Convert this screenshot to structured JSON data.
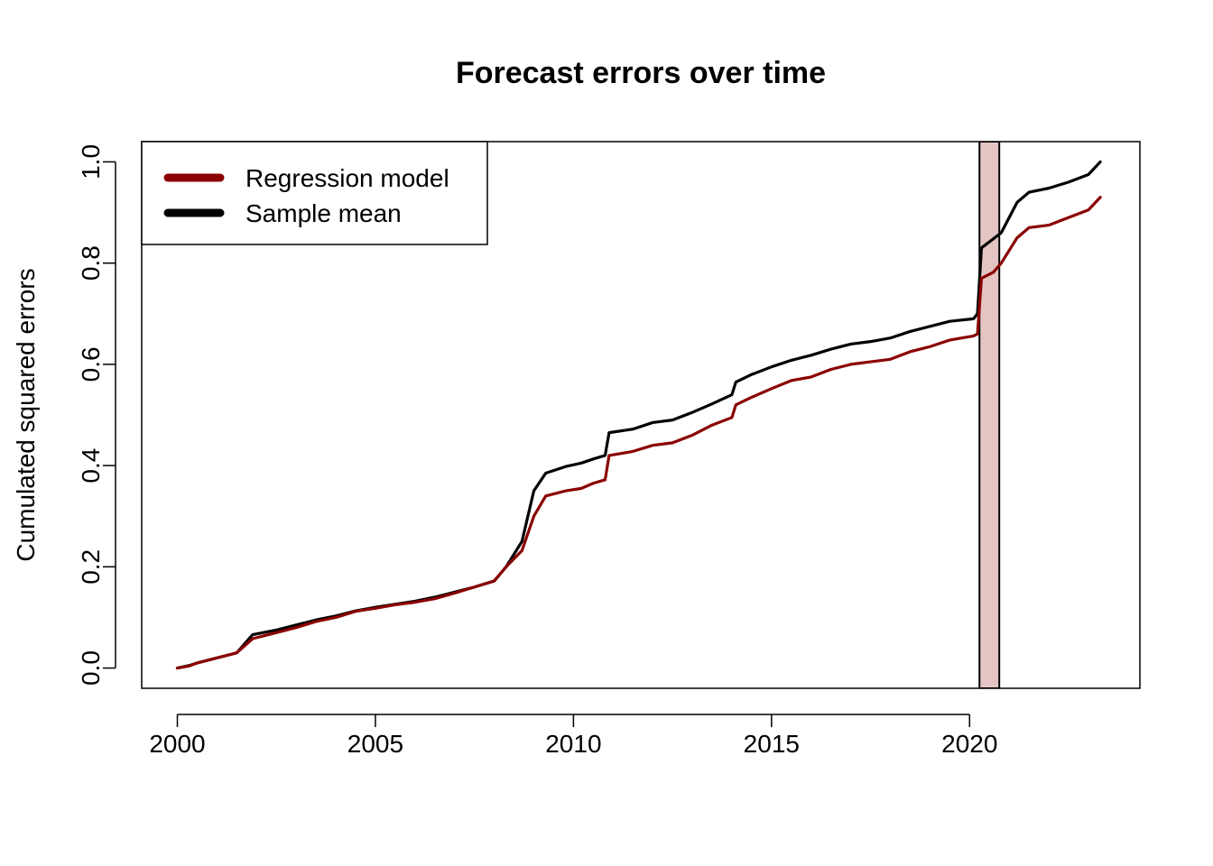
{
  "chart_data": {
    "type": "line",
    "title": "Forecast errors over time",
    "xlabel": "",
    "ylabel": "Cumulated squared errors",
    "xlim": [
      1999.1,
      2024.3
    ],
    "ylim": [
      -0.04,
      1.04
    ],
    "x_ticks": [
      2000,
      2005,
      2010,
      2015,
      2020
    ],
    "x_tick_labels": [
      "2000",
      "2005",
      "2010",
      "2015",
      "2020"
    ],
    "y_ticks": [
      0.0,
      0.2,
      0.4,
      0.6,
      0.8,
      1.0
    ],
    "y_tick_labels": [
      "0.0",
      "0.2",
      "0.4",
      "0.6",
      "0.8",
      "1.0"
    ],
    "shaded_region": {
      "x_start": 2020.25,
      "x_end": 2020.75,
      "color": "#e5c4c4"
    },
    "legend": {
      "placement": "top-left",
      "entries": [
        "Regression model",
        "Sample mean"
      ]
    },
    "series": [
      {
        "name": "Regression model",
        "color": "#8b0000",
        "points": [
          [
            2000.0,
            0.0
          ],
          [
            2000.3,
            0.004
          ],
          [
            2000.5,
            0.01
          ],
          [
            2001.0,
            0.02
          ],
          [
            2001.5,
            0.03
          ],
          [
            2001.9,
            0.058
          ],
          [
            2002.5,
            0.07
          ],
          [
            2003.0,
            0.08
          ],
          [
            2003.5,
            0.092
          ],
          [
            2004.0,
            0.1
          ],
          [
            2004.5,
            0.112
          ],
          [
            2005.0,
            0.118
          ],
          [
            2005.5,
            0.125
          ],
          [
            2006.0,
            0.13
          ],
          [
            2006.5,
            0.137
          ],
          [
            2007.0,
            0.148
          ],
          [
            2007.5,
            0.16
          ],
          [
            2008.0,
            0.172
          ],
          [
            2008.3,
            0.2
          ],
          [
            2008.7,
            0.232
          ],
          [
            2009.0,
            0.3
          ],
          [
            2009.3,
            0.34
          ],
          [
            2009.8,
            0.35
          ],
          [
            2010.2,
            0.355
          ],
          [
            2010.5,
            0.365
          ],
          [
            2010.8,
            0.372
          ],
          [
            2010.9,
            0.42
          ],
          [
            2011.5,
            0.428
          ],
          [
            2012.0,
            0.44
          ],
          [
            2012.5,
            0.445
          ],
          [
            2013.0,
            0.46
          ],
          [
            2013.5,
            0.48
          ],
          [
            2014.0,
            0.495
          ],
          [
            2014.1,
            0.52
          ],
          [
            2014.5,
            0.535
          ],
          [
            2015.0,
            0.552
          ],
          [
            2015.5,
            0.568
          ],
          [
            2016.0,
            0.575
          ],
          [
            2016.5,
            0.59
          ],
          [
            2017.0,
            0.6
          ],
          [
            2017.5,
            0.605
          ],
          [
            2018.0,
            0.61
          ],
          [
            2018.5,
            0.625
          ],
          [
            2019.0,
            0.635
          ],
          [
            2019.5,
            0.648
          ],
          [
            2020.1,
            0.656
          ],
          [
            2020.2,
            0.66
          ],
          [
            2020.3,
            0.77
          ],
          [
            2020.6,
            0.782
          ],
          [
            2020.8,
            0.8
          ],
          [
            2021.2,
            0.85
          ],
          [
            2021.5,
            0.87
          ],
          [
            2022.0,
            0.875
          ],
          [
            2022.5,
            0.89
          ],
          [
            2023.0,
            0.905
          ],
          [
            2023.3,
            0.93
          ]
        ]
      },
      {
        "name": "Sample mean",
        "color": "#000000",
        "points": [
          [
            2000.0,
            0.0
          ],
          [
            2000.3,
            0.005
          ],
          [
            2000.5,
            0.01
          ],
          [
            2001.0,
            0.02
          ],
          [
            2001.5,
            0.03
          ],
          [
            2001.9,
            0.066
          ],
          [
            2002.5,
            0.075
          ],
          [
            2003.0,
            0.085
          ],
          [
            2003.5,
            0.095
          ],
          [
            2004.0,
            0.103
          ],
          [
            2004.5,
            0.113
          ],
          [
            2005.0,
            0.12
          ],
          [
            2005.5,
            0.126
          ],
          [
            2006.0,
            0.132
          ],
          [
            2006.5,
            0.14
          ],
          [
            2007.0,
            0.15
          ],
          [
            2007.5,
            0.16
          ],
          [
            2008.0,
            0.172
          ],
          [
            2008.3,
            0.2
          ],
          [
            2008.7,
            0.25
          ],
          [
            2009.0,
            0.35
          ],
          [
            2009.3,
            0.385
          ],
          [
            2009.8,
            0.398
          ],
          [
            2010.2,
            0.405
          ],
          [
            2010.5,
            0.413
          ],
          [
            2010.8,
            0.42
          ],
          [
            2010.9,
            0.465
          ],
          [
            2011.5,
            0.472
          ],
          [
            2012.0,
            0.485
          ],
          [
            2012.5,
            0.49
          ],
          [
            2013.0,
            0.505
          ],
          [
            2013.5,
            0.522
          ],
          [
            2014.0,
            0.54
          ],
          [
            2014.1,
            0.565
          ],
          [
            2014.5,
            0.58
          ],
          [
            2015.0,
            0.595
          ],
          [
            2015.5,
            0.608
          ],
          [
            2016.0,
            0.618
          ],
          [
            2016.5,
            0.63
          ],
          [
            2017.0,
            0.64
          ],
          [
            2017.5,
            0.645
          ],
          [
            2018.0,
            0.652
          ],
          [
            2018.5,
            0.665
          ],
          [
            2019.0,
            0.675
          ],
          [
            2019.5,
            0.685
          ],
          [
            2020.1,
            0.69
          ],
          [
            2020.2,
            0.7
          ],
          [
            2020.3,
            0.83
          ],
          [
            2020.6,
            0.848
          ],
          [
            2020.8,
            0.86
          ],
          [
            2021.2,
            0.92
          ],
          [
            2021.5,
            0.94
          ],
          [
            2022.0,
            0.948
          ],
          [
            2022.5,
            0.96
          ],
          [
            2023.0,
            0.975
          ],
          [
            2023.3,
            1.0
          ]
        ]
      }
    ]
  }
}
